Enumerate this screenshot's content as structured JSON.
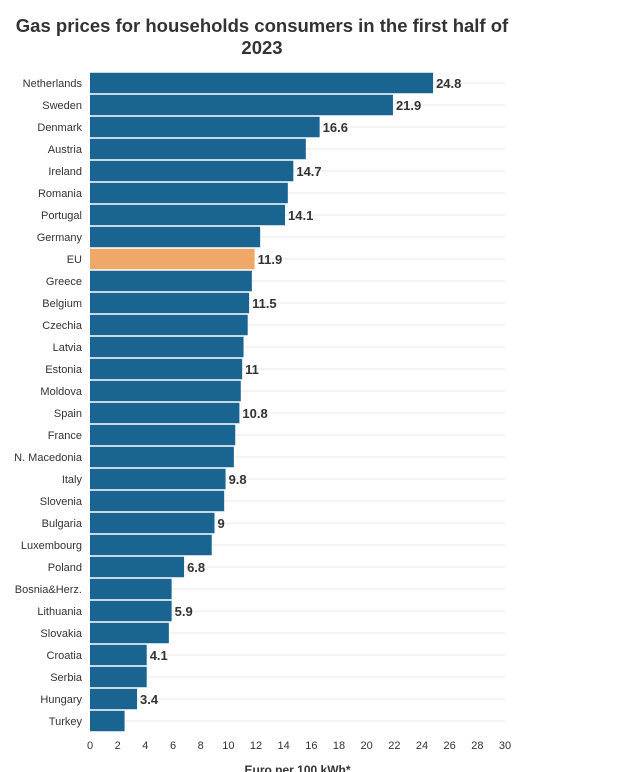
{
  "chart_data": {
    "type": "bar",
    "orientation": "horizontal",
    "title": "Gas prices for households consumers in the first half of 2023",
    "xlabel": "Euro per 100 kWh*",
    "ylabel": "",
    "xlim": [
      0,
      30
    ],
    "xticks": [
      "0",
      "2",
      "4",
      "6",
      "8",
      "10",
      "12",
      "14",
      "16",
      "18",
      "20",
      "22",
      "24",
      "26",
      "28",
      "30"
    ],
    "grid": "horizontal",
    "colors": {
      "default": "#1a6491",
      "highlight": "#f0a868"
    },
    "highlight_category": "EU",
    "categories": [
      "Netherlands",
      "Sweden",
      "Denmark",
      "Austria",
      "Ireland",
      "Romania",
      "Portugal",
      "Germany",
      "EU",
      "Greece",
      "Belgium",
      "Czechia",
      "Latvia",
      "Estonia",
      "Moldova",
      "Spain",
      "France",
      "N. Macedonia",
      "Italy",
      "Slovenia",
      "Bulgaria",
      "Luxembourg",
      "Poland",
      "Bosnia&Herz.",
      "Lithuania",
      "Slovakia",
      "Croatia",
      "Serbia",
      "Hungary",
      "Turkey"
    ],
    "values": [
      24.8,
      21.9,
      16.6,
      15.6,
      14.7,
      14.3,
      14.1,
      12.3,
      11.9,
      11.7,
      11.5,
      11.4,
      11.1,
      11.0,
      10.9,
      10.8,
      10.5,
      10.4,
      9.8,
      9.7,
      9,
      8.8,
      6.8,
      5.9,
      5.9,
      5.7,
      4.1,
      4.1,
      3.4,
      2.5
    ],
    "data_labels": [
      "24.8",
      "21.9",
      "16.6",
      "",
      "14.7",
      "",
      "14.1",
      "",
      "11.9",
      "",
      "11.5",
      "",
      "",
      "11",
      "",
      "10.8",
      "",
      "",
      "9.8",
      "",
      "9",
      "",
      "6.8",
      "",
      "5.9",
      "",
      "4.1",
      "",
      "3.4",
      ""
    ]
  }
}
